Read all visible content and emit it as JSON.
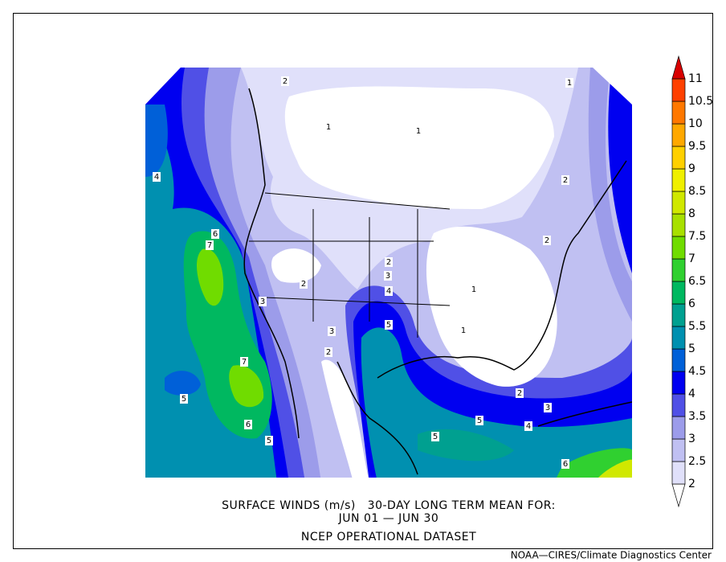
{
  "title": {
    "line1": "SURFACE WINDS (m/s)   30-DAY LONG TERM MEAN FOR:",
    "line2": "JUN 01 — JUN 30",
    "line3": "NCEP OPERATIONAL DATASET"
  },
  "credit": "NOAA—CIRES/Climate Diagnostics Center",
  "legend": {
    "levels": [
      2,
      2.5,
      3,
      3.5,
      4,
      4.5,
      5,
      5.5,
      6,
      6.5,
      7,
      7.5,
      8,
      8.5,
      9,
      9.5,
      10,
      10.5,
      11
    ],
    "colors": [
      "#ffffff",
      "#e0e0fa",
      "#c0c0f2",
      "#9c9cea",
      "#5050e6",
      "#0000f0",
      "#0060d8",
      "#0090b0",
      "#00a090",
      "#00b860",
      "#30d030",
      "#70dc00",
      "#a8e000",
      "#d0e800",
      "#f0f000",
      "#ffd000",
      "#ffa800",
      "#ff7800",
      "#ff4000",
      "#d80000"
    ]
  },
  "contour_labels": [
    4,
    6,
    7,
    3,
    2,
    3,
    2,
    3,
    2,
    4,
    5,
    7,
    6,
    5,
    5,
    5,
    5,
    4,
    3,
    2,
    1,
    1,
    2,
    2,
    1,
    1,
    1,
    2,
    6
  ]
}
